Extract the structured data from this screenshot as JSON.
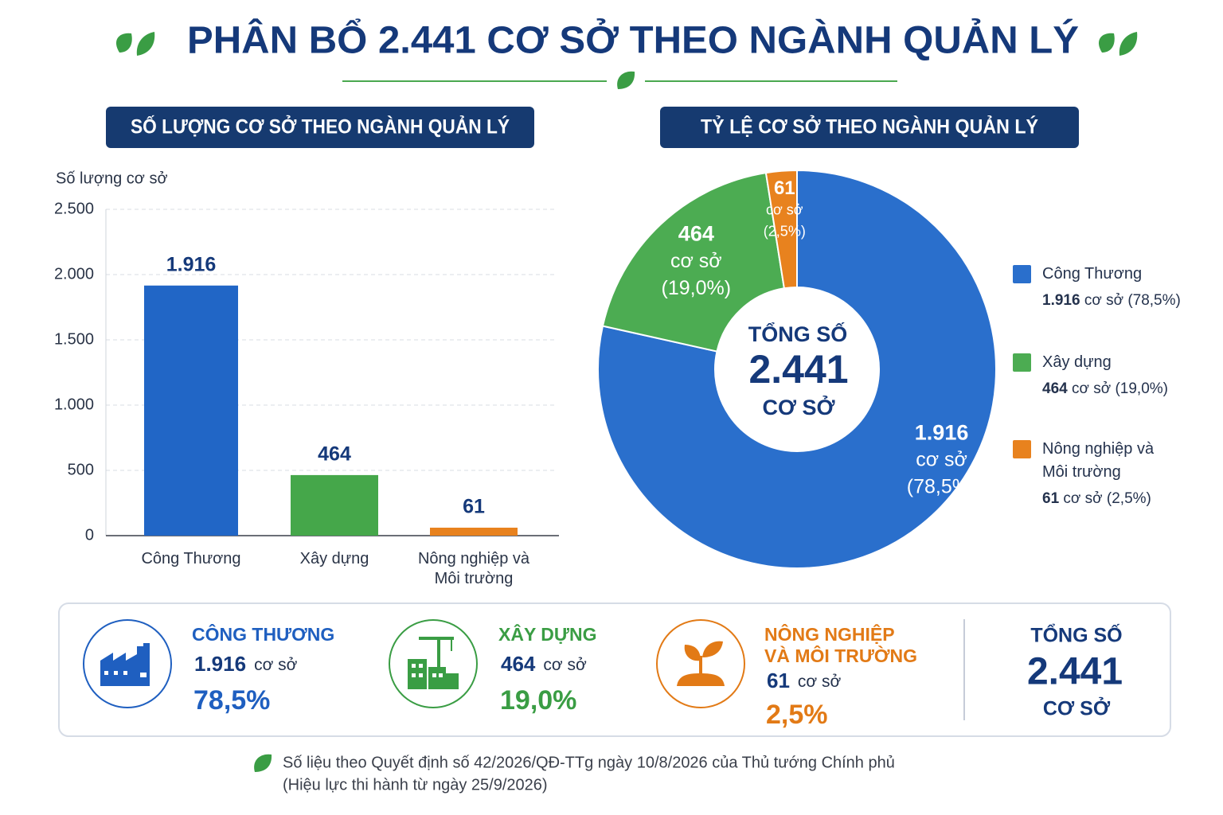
{
  "title": "PHÂN BỔ 2.441 CƠ SỞ THEO NGÀNH QUẢN LÝ",
  "chart_data": [
    {
      "type": "bar",
      "title": "SỐ LƯỢNG CƠ SỞ THEO NGÀNH QUẢN LÝ",
      "y_label": "Số lượng cơ sở",
      "categories": [
        "Công Thương",
        "Xây dựng",
        "Nông nghiệp và Môi trường"
      ],
      "values": [
        1916,
        464,
        61
      ],
      "value_labels": [
        "1.916",
        "464",
        "61"
      ],
      "colors": [
        "#2166c6",
        "#45a74a",
        "#e8821e"
      ],
      "ylim": [
        0,
        2500
      ],
      "yticks": [
        0,
        500,
        {
          "value": 1000,
          "label": "1.000"
        },
        {
          "value": 1500,
          "label": "1.500"
        },
        {
          "value": 2000,
          "label": "2.000"
        },
        {
          "value": 2500,
          "label": "2.500"
        }
      ],
      "grid": true
    },
    {
      "type": "pie",
      "title": "TỶ LỆ CƠ SỞ THEO NGÀNH QUẢN LÝ",
      "categories": [
        "Công Thương",
        "Xây dựng",
        "Nông nghiệp và Môi trường"
      ],
      "values": [
        1916,
        464,
        61
      ],
      "value_labels": [
        "1.916",
        "464",
        "61"
      ],
      "unit": "cơ sở",
      "percent_labels": [
        "(78,5%)",
        "(19,0%)",
        "(2,5%)"
      ],
      "colors": [
        "#2a6fcc",
        "#4cac52",
        "#e8821e"
      ],
      "center": {
        "title": "TỔNG SỐ",
        "value": "2.441",
        "unit": "CƠ SỞ"
      },
      "legend": "right"
    }
  ],
  "cards": [
    {
      "title": "CÔNG THƯƠNG",
      "value": "1.916",
      "unit": "cơ sở",
      "percent": "78,5%",
      "color": "#1f5fc0"
    },
    {
      "title": "XÂY DỰNG",
      "value": "464",
      "unit": "cơ sở",
      "percent": "19,0%",
      "color": "#3a9d44"
    },
    {
      "title": "NÔNG NGHIỆP VÀ MÔI TRƯỜNG",
      "value": "61",
      "unit": "cơ sở",
      "percent": "2,5%",
      "color": "#e27a16"
    }
  ],
  "total": {
    "title": "TỔNG SỐ",
    "value": "2.441",
    "unit": "CƠ SỞ"
  },
  "footnote": [
    "Số liệu theo Quyết định số 42/2026/QĐ-TTg ngày 10/8/2026 của Thủ tướng Chính phủ",
    "(Hiệu lực thi hành từ ngày 25/9/2026)"
  ]
}
